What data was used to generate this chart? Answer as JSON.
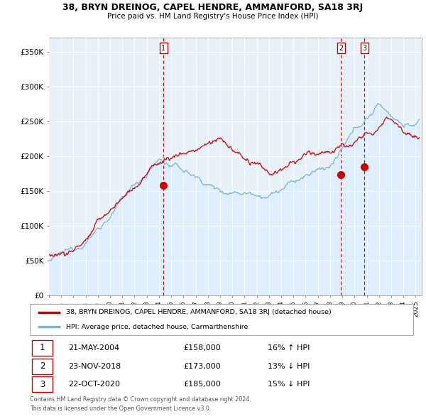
{
  "title1": "38, BRYN DREINOG, CAPEL HENDRE, AMMANFORD, SA18 3RJ",
  "title2": "Price paid vs. HM Land Registry's House Price Index (HPI)",
  "ylabel_ticks": [
    "£0",
    "£50K",
    "£100K",
    "£150K",
    "£200K",
    "£250K",
    "£300K",
    "£350K"
  ],
  "ylabel_values": [
    0,
    50000,
    100000,
    150000,
    200000,
    250000,
    300000,
    350000
  ],
  "ylim": [
    0,
    370000
  ],
  "hpi_color": "#7ab4d8",
  "price_color": "#cc0000",
  "fill_color": "#ddeeff",
  "transactions": [
    {
      "num": 1,
      "date": "21-MAY-2004",
      "price": 158000,
      "year": 2004.38
    },
    {
      "num": 2,
      "date": "23-NOV-2018",
      "price": 173000,
      "year": 2018.9
    },
    {
      "num": 3,
      "date": "22-OCT-2020",
      "price": 185000,
      "year": 2020.8
    }
  ],
  "legend_line1": "38, BRYN DREINOG, CAPEL HENDRE, AMMANFORD, SA18 3RJ (detached house)",
  "legend_line2": "HPI: Average price, detached house, Carmarthenshire",
  "footer1": "Contains HM Land Registry data © Crown copyright and database right 2024.",
  "footer2": "This data is licensed under the Open Government Licence v3.0.",
  "box_entries": [
    {
      "num": "1",
      "date": "21-MAY-2004",
      "price": "£158,000",
      "pct": "16% ↑ HPI"
    },
    {
      "num": "2",
      "date": "23-NOV-2018",
      "price": "£173,000",
      "pct": "13% ↓ HPI"
    },
    {
      "num": "3",
      "date": "22-OCT-2020",
      "price": "£185,000",
      "pct": "15% ↓ HPI"
    }
  ]
}
